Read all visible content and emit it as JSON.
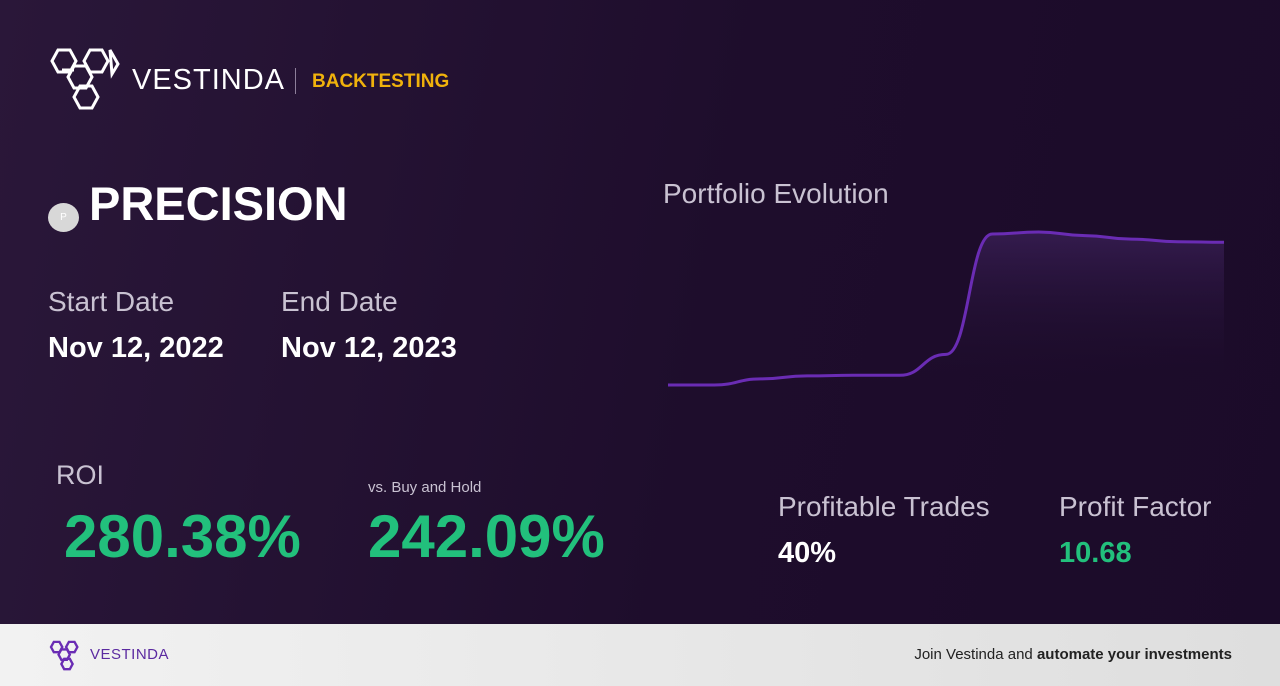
{
  "header": {
    "brand": "VESTINDA",
    "section": "BACKTESTING"
  },
  "asset": {
    "icon": "P",
    "name": "PRECISION"
  },
  "dates": {
    "start_label": "Start Date",
    "start": "Nov 12, 2022",
    "end_label": "End Date",
    "end": "Nov 12, 2023"
  },
  "portfolio_chart": {
    "type": "line",
    "title": "Portfolio Evolution",
    "color": "#6a2cb4",
    "values": [
      100,
      100,
      112,
      118,
      119,
      119,
      160,
      396,
      400,
      393,
      386,
      381,
      380
    ]
  },
  "metrics": {
    "roi_label": "ROI",
    "roi": "280.38%",
    "vs_label": "vs. Buy and Hold",
    "vs": "242.09%",
    "profitable_label": "Profitable Trades",
    "profitable": "40%",
    "factor_label": "Profit Factor",
    "factor": "10.68"
  },
  "footer": {
    "brand": "VESTINDA",
    "cta_plain": "Join Vestinda and ",
    "cta_bold": "automate your investments"
  }
}
